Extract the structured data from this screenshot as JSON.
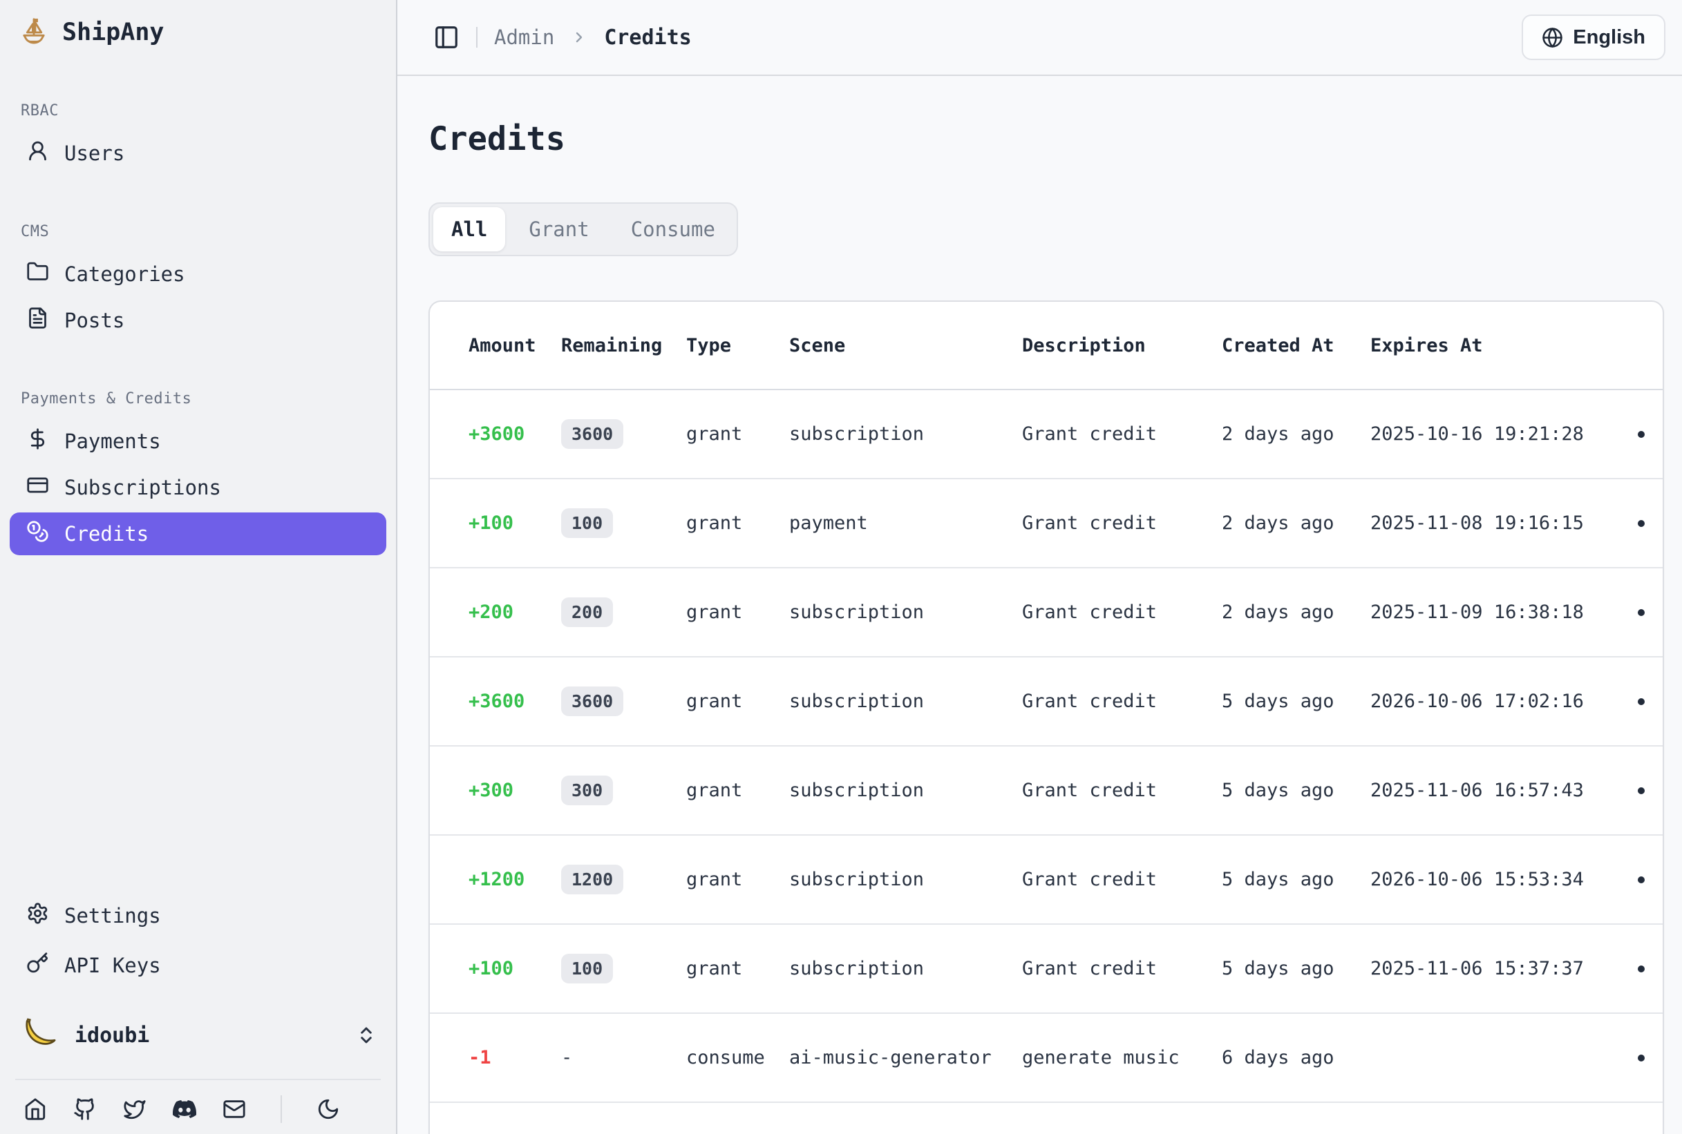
{
  "brand": {
    "name": "ShipAny",
    "logo_icon": "sailboat-icon"
  },
  "sidebar": {
    "sections": [
      {
        "label": "RBAC",
        "items": [
          {
            "label": "Users",
            "icon": "user-icon",
            "active": false
          }
        ]
      },
      {
        "label": "CMS",
        "items": [
          {
            "label": "Categories",
            "icon": "folder-icon",
            "active": false
          },
          {
            "label": "Posts",
            "icon": "file-text-icon",
            "active": false
          }
        ]
      },
      {
        "label": "Payments & Credits",
        "items": [
          {
            "label": "Payments",
            "icon": "dollar-icon",
            "active": false
          },
          {
            "label": "Subscriptions",
            "icon": "credit-card-icon",
            "active": false
          },
          {
            "label": "Credits",
            "icon": "coins-icon",
            "active": true
          }
        ]
      }
    ],
    "footer_items": [
      {
        "label": "Settings",
        "icon": "gear-icon"
      },
      {
        "label": "API Keys",
        "icon": "key-icon"
      }
    ],
    "user": {
      "name": "idoubi",
      "avatar_icon": "banana-avatar",
      "expander_icon": "chevrons-up-down-icon"
    },
    "social_icons": [
      "home-icon",
      "github-icon",
      "twitter-icon",
      "discord-icon",
      "mail-icon"
    ],
    "theme_toggle_icon": "moon-icon"
  },
  "header": {
    "sidebar_toggle_icon": "panel-left-icon",
    "breadcrumb": {
      "parent": "Admin",
      "current": "Credits"
    },
    "language_button": {
      "label": "English",
      "icon": "globe-icon"
    }
  },
  "page": {
    "title": "Credits",
    "tabs": [
      {
        "label": "All",
        "active": true
      },
      {
        "label": "Grant",
        "active": false
      },
      {
        "label": "Consume",
        "active": false
      }
    ]
  },
  "table": {
    "columns": [
      "Amount",
      "Remaining",
      "Type",
      "Scene",
      "Description",
      "Created At",
      "Expires At"
    ],
    "rows": [
      {
        "amount": "+3600",
        "negative": false,
        "remaining": "3600",
        "remaining_badge": true,
        "type": "grant",
        "scene": "subscription",
        "description": "Grant credit",
        "created_at": "2 days ago",
        "expires_at": "2025-10-16 19:21:28"
      },
      {
        "amount": "+100",
        "negative": false,
        "remaining": "100",
        "remaining_badge": true,
        "type": "grant",
        "scene": "payment",
        "description": "Grant credit",
        "created_at": "2 days ago",
        "expires_at": "2025-11-08 19:16:15"
      },
      {
        "amount": "+200",
        "negative": false,
        "remaining": "200",
        "remaining_badge": true,
        "type": "grant",
        "scene": "subscription",
        "description": "Grant credit",
        "created_at": "2 days ago",
        "expires_at": "2025-11-09 16:38:18"
      },
      {
        "amount": "+3600",
        "negative": false,
        "remaining": "3600",
        "remaining_badge": true,
        "type": "grant",
        "scene": "subscription",
        "description": "Grant credit",
        "created_at": "5 days ago",
        "expires_at": "2026-10-06 17:02:16"
      },
      {
        "amount": "+300",
        "negative": false,
        "remaining": "300",
        "remaining_badge": true,
        "type": "grant",
        "scene": "subscription",
        "description": "Grant credit",
        "created_at": "5 days ago",
        "expires_at": "2025-11-06 16:57:43"
      },
      {
        "amount": "+1200",
        "negative": false,
        "remaining": "1200",
        "remaining_badge": true,
        "type": "grant",
        "scene": "subscription",
        "description": "Grant credit",
        "created_at": "5 days ago",
        "expires_at": "2026-10-06 15:53:34"
      },
      {
        "amount": "+100",
        "negative": false,
        "remaining": "100",
        "remaining_badge": true,
        "type": "grant",
        "scene": "subscription",
        "description": "Grant credit",
        "created_at": "5 days ago",
        "expires_at": "2025-11-06 15:37:37"
      },
      {
        "amount": "-1",
        "negative": true,
        "remaining": "-",
        "remaining_badge": false,
        "type": "consume",
        "scene": "ai-music-generator",
        "description": "generate music",
        "created_at": "6 days ago",
        "expires_at": ""
      }
    ]
  },
  "colors": {
    "accent": "#6f5fe8",
    "positive": "#35bf4c",
    "negative": "#ef4444",
    "badge-bg": "#e9eaee",
    "sidebar-bg": "#f1f2f4",
    "main-bg": "#f8f9fb",
    "card-bg": "#ffffff",
    "border": "#d9dbe0",
    "row-divider": "#e4e6ea",
    "text-dark": "#222b3a",
    "text-gray": "#6b7280"
  }
}
